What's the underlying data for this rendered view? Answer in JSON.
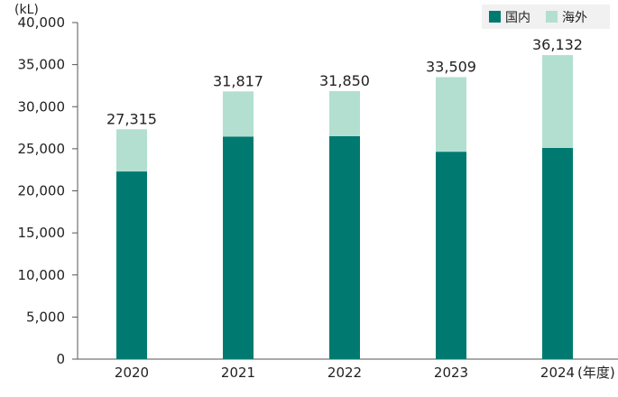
{
  "chart_data": {
    "type": "bar",
    "stacked": true,
    "title": "",
    "y_unit_label": "(kL)",
    "x_unit_label": "(年度)",
    "categories": [
      "2020",
      "2021",
      "2022",
      "2023",
      "2024"
    ],
    "series": [
      {
        "name": "国内",
        "color": "#007a70",
        "values": [
          22300,
          26450,
          26500,
          24650,
          25100
        ]
      },
      {
        "name": "海外",
        "color": "#b2dfd0",
        "values": [
          5015,
          5367,
          5350,
          8859,
          11032
        ]
      }
    ],
    "totals": [
      27315,
      31817,
      31850,
      33509,
      36132
    ],
    "total_labels": [
      "27,315",
      "31,817",
      "31,850",
      "33,509",
      "36,132"
    ],
    "ylim": [
      0,
      40000
    ],
    "yticks": [
      0,
      5000,
      10000,
      15000,
      20000,
      25000,
      30000,
      35000,
      40000
    ],
    "ytick_labels": [
      "0",
      "5,000",
      "10,000",
      "15,000",
      "20,000",
      "25,000",
      "30,000",
      "35,000",
      "40,000"
    ],
    "grid": false,
    "legend_position": "top-right"
  }
}
